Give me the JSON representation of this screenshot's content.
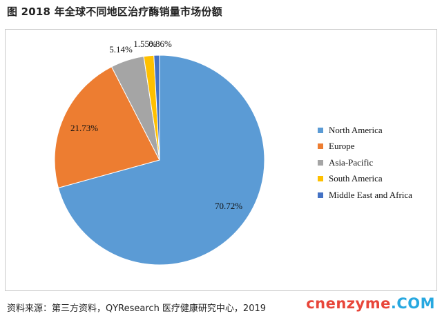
{
  "header": {
    "title": "图  2018 年全球不同地区治疗酶销量市场份额"
  },
  "footer": {
    "source": "资料来源：第三方资料，QYResearch 医疗健康研究中心，2019"
  },
  "watermark": {
    "part1": "cnenzyme",
    "part2": ".COM"
  },
  "chart_data": {
    "type": "pie",
    "title": "",
    "start_angle_deg": 90,
    "direction": "clockwise",
    "slices": [
      {
        "name": "North America",
        "value": 70.72,
        "label": "70.72%",
        "color": "#5b9bd5"
      },
      {
        "name": "Europe",
        "value": 21.73,
        "label": "21.73%",
        "color": "#ed7d31"
      },
      {
        "name": "Asia-Pacific",
        "value": 5.14,
        "label": "5.14%",
        "color": "#a5a5a5"
      },
      {
        "name": "South America",
        "value": 1.55,
        "label": "1.55%",
        "color": "#ffc000"
      },
      {
        "name": "Middle East and Africa",
        "value": 0.86,
        "label": "0.86%",
        "color": "#4472c4"
      }
    ],
    "legend_position": "right"
  }
}
